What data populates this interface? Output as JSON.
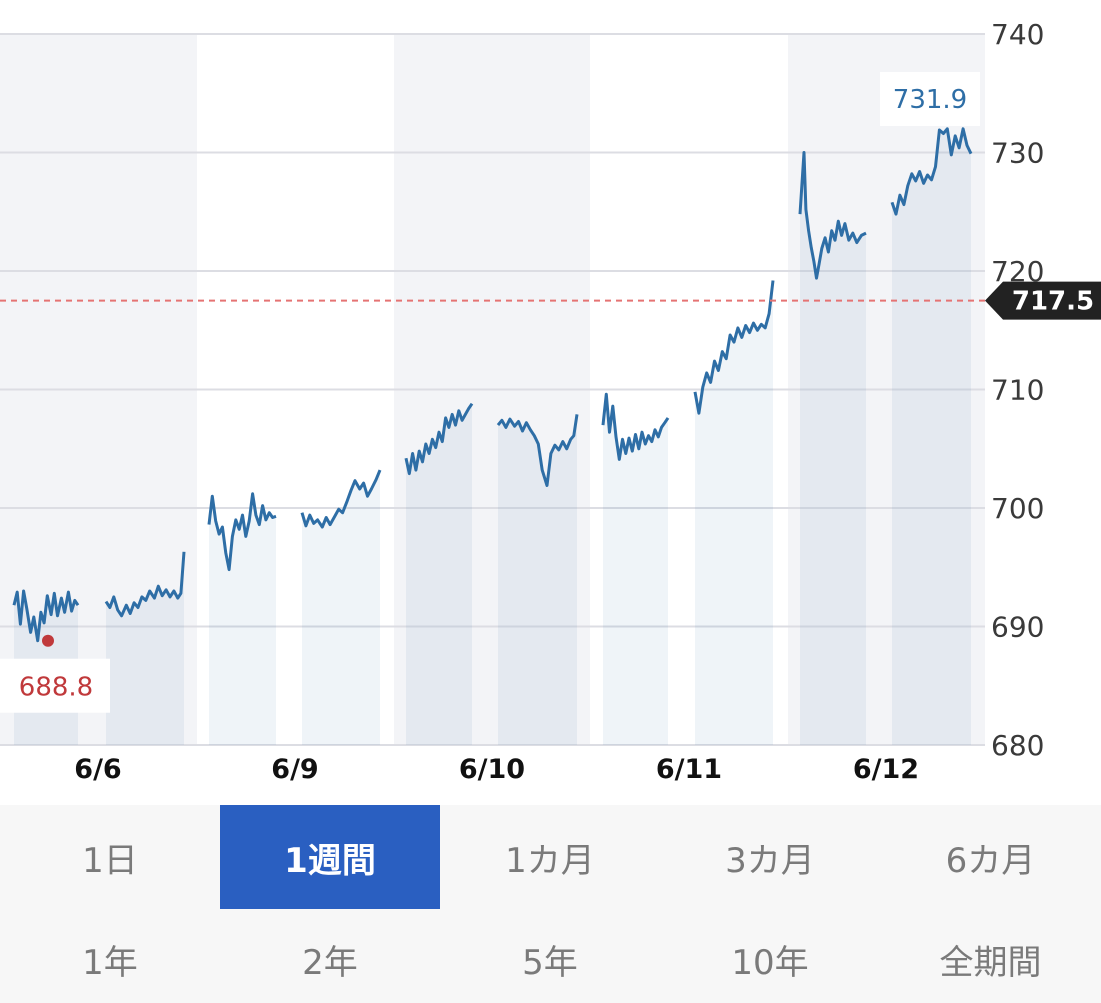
{
  "chart_data": {
    "type": "line",
    "x_categories": [
      "6/6",
      "6/9",
      "6/10",
      "6/11",
      "6/12"
    ],
    "ylim": [
      680,
      740
    ],
    "y_ticks": [
      740,
      730,
      720,
      710,
      700,
      690,
      680
    ],
    "y_axis_position": "right",
    "grid": true,
    "legend": "none",
    "high": {
      "value": 731.9,
      "label": "731.9"
    },
    "low": {
      "value": 688.8,
      "label": "688.8"
    },
    "reference": {
      "value": 717.5,
      "label": "717.5"
    },
    "colors": {
      "line": "#2e6ea6",
      "high": "#2e6ea6",
      "low": "#c0393b",
      "reference": "#e57373",
      "reference_badge": "#222222"
    },
    "segments": [
      {
        "day": "6/6",
        "session": 1,
        "points": [
          [
            0.0,
            691.8
          ],
          [
            0.05,
            692.9
          ],
          [
            0.1,
            690.2
          ],
          [
            0.15,
            693.0
          ],
          [
            0.2,
            691.5
          ],
          [
            0.26,
            689.5
          ],
          [
            0.31,
            690.8
          ],
          [
            0.37,
            688.8
          ],
          [
            0.42,
            691.2
          ],
          [
            0.47,
            690.3
          ],
          [
            0.52,
            692.6
          ],
          [
            0.58,
            691.0
          ],
          [
            0.63,
            692.8
          ],
          [
            0.68,
            690.9
          ],
          [
            0.74,
            692.4
          ],
          [
            0.79,
            691.2
          ],
          [
            0.85,
            692.9
          ],
          [
            0.9,
            691.3
          ],
          [
            0.95,
            692.2
          ],
          [
            1.0,
            691.8
          ]
        ]
      },
      {
        "day": "6/6",
        "session": 2,
        "points": [
          [
            0.0,
            692.1
          ],
          [
            0.05,
            691.6
          ],
          [
            0.1,
            692.5
          ],
          [
            0.15,
            691.4
          ],
          [
            0.2,
            690.9
          ],
          [
            0.26,
            691.8
          ],
          [
            0.31,
            691.1
          ],
          [
            0.36,
            692.0
          ],
          [
            0.41,
            691.6
          ],
          [
            0.46,
            692.5
          ],
          [
            0.51,
            692.2
          ],
          [
            0.56,
            693.0
          ],
          [
            0.62,
            692.4
          ],
          [
            0.67,
            693.4
          ],
          [
            0.72,
            692.6
          ],
          [
            0.77,
            693.1
          ],
          [
            0.82,
            692.5
          ],
          [
            0.87,
            693.0
          ],
          [
            0.92,
            692.4
          ],
          [
            0.96,
            692.8
          ],
          [
            1.0,
            696.3
          ]
        ]
      },
      {
        "day": "6/9",
        "session": 1,
        "points": [
          [
            0.0,
            698.6
          ],
          [
            0.05,
            701.0
          ],
          [
            0.1,
            698.9
          ],
          [
            0.15,
            697.8
          ],
          [
            0.2,
            698.4
          ],
          [
            0.25,
            696.2
          ],
          [
            0.3,
            694.8
          ],
          [
            0.35,
            697.6
          ],
          [
            0.4,
            699.0
          ],
          [
            0.45,
            698.2
          ],
          [
            0.5,
            699.4
          ],
          [
            0.55,
            697.6
          ],
          [
            0.6,
            698.9
          ],
          [
            0.65,
            701.2
          ],
          [
            0.7,
            699.4
          ],
          [
            0.75,
            698.6
          ],
          [
            0.8,
            700.2
          ],
          [
            0.85,
            699.0
          ],
          [
            0.9,
            699.6
          ],
          [
            0.95,
            699.2
          ],
          [
            1.0,
            699.3
          ]
        ]
      },
      {
        "day": "6/9",
        "session": 2,
        "points": [
          [
            0.0,
            699.6
          ],
          [
            0.05,
            698.5
          ],
          [
            0.1,
            699.4
          ],
          [
            0.15,
            698.7
          ],
          [
            0.2,
            699.0
          ],
          [
            0.26,
            698.4
          ],
          [
            0.31,
            699.2
          ],
          [
            0.36,
            698.6
          ],
          [
            0.42,
            699.3
          ],
          [
            0.47,
            699.9
          ],
          [
            0.52,
            699.6
          ],
          [
            0.58,
            700.6
          ],
          [
            0.63,
            701.5
          ],
          [
            0.68,
            702.3
          ],
          [
            0.74,
            701.6
          ],
          [
            0.79,
            702.1
          ],
          [
            0.84,
            701.0
          ],
          [
            0.89,
            701.6
          ],
          [
            0.95,
            702.4
          ],
          [
            1.0,
            703.2
          ]
        ]
      },
      {
        "day": "6/10",
        "session": 1,
        "points": [
          [
            0.0,
            704.2
          ],
          [
            0.05,
            702.9
          ],
          [
            0.1,
            704.6
          ],
          [
            0.15,
            703.2
          ],
          [
            0.2,
            704.8
          ],
          [
            0.25,
            703.9
          ],
          [
            0.3,
            705.4
          ],
          [
            0.35,
            704.6
          ],
          [
            0.4,
            705.8
          ],
          [
            0.45,
            705.1
          ],
          [
            0.5,
            706.4
          ],
          [
            0.55,
            705.6
          ],
          [
            0.6,
            707.6
          ],
          [
            0.65,
            706.8
          ],
          [
            0.7,
            707.9
          ],
          [
            0.75,
            707.0
          ],
          [
            0.8,
            708.2
          ],
          [
            0.85,
            707.4
          ],
          [
            0.9,
            707.9
          ],
          [
            0.95,
            708.4
          ],
          [
            1.0,
            708.8
          ]
        ]
      },
      {
        "day": "6/10",
        "session": 2,
        "points": [
          [
            0.0,
            707.0
          ],
          [
            0.05,
            707.4
          ],
          [
            0.1,
            706.8
          ],
          [
            0.15,
            707.5
          ],
          [
            0.21,
            706.9
          ],
          [
            0.26,
            707.3
          ],
          [
            0.31,
            706.5
          ],
          [
            0.36,
            707.2
          ],
          [
            0.41,
            706.6
          ],
          [
            0.46,
            706.1
          ],
          [
            0.51,
            705.4
          ],
          [
            0.56,
            703.2
          ],
          [
            0.62,
            701.9
          ],
          [
            0.67,
            704.6
          ],
          [
            0.72,
            705.3
          ],
          [
            0.77,
            704.9
          ],
          [
            0.82,
            705.6
          ],
          [
            0.87,
            705.0
          ],
          [
            0.92,
            705.8
          ],
          [
            0.96,
            706.1
          ],
          [
            1.0,
            707.9
          ]
        ]
      },
      {
        "day": "6/11",
        "session": 1,
        "points": [
          [
            0.0,
            707.0
          ],
          [
            0.05,
            709.6
          ],
          [
            0.1,
            706.4
          ],
          [
            0.15,
            708.6
          ],
          [
            0.2,
            706.0
          ],
          [
            0.25,
            704.1
          ],
          [
            0.3,
            705.8
          ],
          [
            0.35,
            704.6
          ],
          [
            0.4,
            705.9
          ],
          [
            0.45,
            704.8
          ],
          [
            0.5,
            706.2
          ],
          [
            0.55,
            705.0
          ],
          [
            0.6,
            706.4
          ],
          [
            0.65,
            705.4
          ],
          [
            0.7,
            706.1
          ],
          [
            0.75,
            705.6
          ],
          [
            0.8,
            706.6
          ],
          [
            0.85,
            706.0
          ],
          [
            0.9,
            706.8
          ],
          [
            0.95,
            707.2
          ],
          [
            1.0,
            707.6
          ]
        ]
      },
      {
        "day": "6/11",
        "session": 2,
        "points": [
          [
            0.0,
            709.8
          ],
          [
            0.05,
            708.0
          ],
          [
            0.1,
            710.2
          ],
          [
            0.15,
            711.4
          ],
          [
            0.2,
            710.6
          ],
          [
            0.25,
            712.4
          ],
          [
            0.3,
            711.6
          ],
          [
            0.35,
            713.2
          ],
          [
            0.4,
            712.6
          ],
          [
            0.45,
            714.6
          ],
          [
            0.5,
            714.0
          ],
          [
            0.55,
            715.2
          ],
          [
            0.6,
            714.4
          ],
          [
            0.65,
            715.4
          ],
          [
            0.7,
            714.8
          ],
          [
            0.75,
            715.6
          ],
          [
            0.8,
            715.0
          ],
          [
            0.85,
            715.5
          ],
          [
            0.9,
            715.2
          ],
          [
            0.95,
            716.4
          ],
          [
            1.0,
            719.2
          ]
        ]
      },
      {
        "day": "6/12",
        "session": 1,
        "points": [
          [
            0.0,
            724.8
          ],
          [
            0.03,
            727.4
          ],
          [
            0.06,
            730.0
          ],
          [
            0.09,
            725.2
          ],
          [
            0.13,
            723.4
          ],
          [
            0.17,
            722.0
          ],
          [
            0.21,
            720.8
          ],
          [
            0.25,
            719.4
          ],
          [
            0.29,
            720.6
          ],
          [
            0.33,
            721.9
          ],
          [
            0.38,
            722.8
          ],
          [
            0.43,
            721.6
          ],
          [
            0.48,
            723.4
          ],
          [
            0.53,
            722.6
          ],
          [
            0.58,
            724.2
          ],
          [
            0.63,
            723.0
          ],
          [
            0.68,
            724.0
          ],
          [
            0.74,
            722.6
          ],
          [
            0.8,
            723.2
          ],
          [
            0.86,
            722.4
          ],
          [
            0.93,
            723.0
          ],
          [
            1.0,
            723.2
          ]
        ]
      },
      {
        "day": "6/12",
        "session": 2,
        "points": [
          [
            0.0,
            725.8
          ],
          [
            0.05,
            724.8
          ],
          [
            0.1,
            726.4
          ],
          [
            0.15,
            725.6
          ],
          [
            0.2,
            727.2
          ],
          [
            0.25,
            728.2
          ],
          [
            0.3,
            727.6
          ],
          [
            0.35,
            728.4
          ],
          [
            0.4,
            727.4
          ],
          [
            0.45,
            728.1
          ],
          [
            0.5,
            727.7
          ],
          [
            0.55,
            728.8
          ],
          [
            0.6,
            731.9
          ],
          [
            0.65,
            731.6
          ],
          [
            0.7,
            732.0
          ],
          [
            0.75,
            729.8
          ],
          [
            0.8,
            731.4
          ],
          [
            0.85,
            730.4
          ],
          [
            0.9,
            732.0
          ],
          [
            0.95,
            730.6
          ],
          [
            1.0,
            729.9
          ]
        ]
      }
    ]
  },
  "range_tabs": {
    "row1": [
      "1日",
      "1週間",
      "1カ月",
      "3カ月",
      "6カ月"
    ],
    "row2": [
      "1年",
      "2年",
      "5年",
      "10年",
      "全期間"
    ],
    "active": "1週間"
  }
}
